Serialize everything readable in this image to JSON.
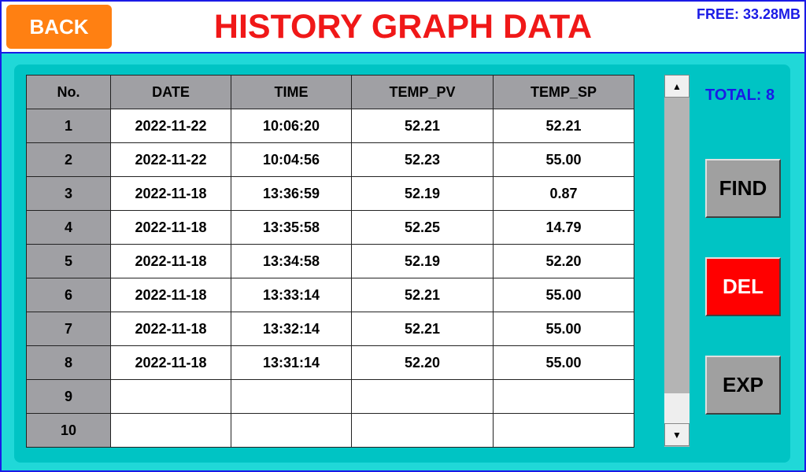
{
  "header": {
    "back": "BACK",
    "title": "HISTORY GRAPH DATA",
    "free": "FREE: 33.28MB"
  },
  "table": {
    "columns": [
      "No.",
      "DATE",
      "TIME",
      "TEMP_PV",
      "TEMP_SP"
    ],
    "rows": [
      [
        "1",
        "2022-11-22",
        "10:06:20",
        "52.21",
        "52.21"
      ],
      [
        "2",
        "2022-11-22",
        "10:04:56",
        "52.23",
        "55.00"
      ],
      [
        "3",
        "2022-11-18",
        "13:36:59",
        "52.19",
        "0.87"
      ],
      [
        "4",
        "2022-11-18",
        "13:35:58",
        "52.25",
        "14.79"
      ],
      [
        "5",
        "2022-11-18",
        "13:34:58",
        "52.19",
        "52.20"
      ],
      [
        "6",
        "2022-11-18",
        "13:33:14",
        "52.21",
        "55.00"
      ],
      [
        "7",
        "2022-11-18",
        "13:32:14",
        "52.21",
        "55.00"
      ],
      [
        "8",
        "2022-11-18",
        "13:31:14",
        "52.20",
        "55.00"
      ],
      [
        "9"
      ],
      [
        "10"
      ]
    ]
  },
  "sidebar": {
    "total": "TOTAL: 8",
    "buttons": [
      "FIND",
      "DEL",
      "EXP"
    ]
  }
}
